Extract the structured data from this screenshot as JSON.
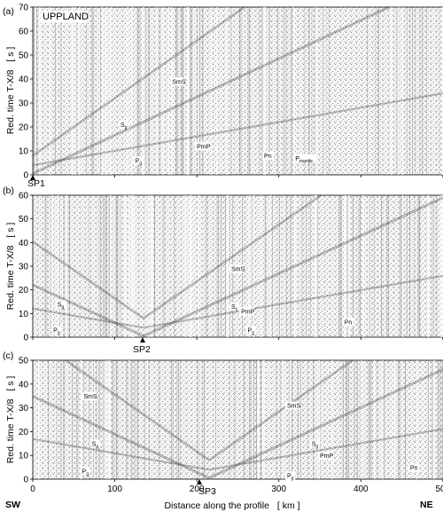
{
  "title": "UPPLAND",
  "directions": {
    "left": "SW",
    "right": "NE"
  },
  "x_axis": {
    "label": "Distance along the profile",
    "unit": "[ km ]",
    "min": 0,
    "max": 525,
    "ticks": [
      0,
      100,
      200,
      300,
      400,
      500
    ]
  },
  "y_axis_label": {
    "text": "Red. time  T-X/8",
    "unit": "[ s ]"
  },
  "panels": [
    {
      "id": "a",
      "letter": "(a)",
      "ylim": [
        0,
        70
      ],
      "yticks": [
        0,
        10,
        20,
        30,
        40,
        50,
        60,
        70
      ],
      "shotpoint": {
        "name": "SP1",
        "km": 0
      },
      "phases": [
        {
          "main": "SmS",
          "sub": "",
          "km": 170,
          "t": 38
        },
        {
          "main": "S",
          "sub": "g",
          "km": 107,
          "t": 20
        },
        {
          "main": "PmP",
          "sub": "",
          "km": 200,
          "t": 11
        },
        {
          "main": "P",
          "sub": "g",
          "km": 125,
          "t": 5
        },
        {
          "main": "Pn",
          "sub": "",
          "km": 282,
          "t": 7
        },
        {
          "main": "P",
          "sub": "mantle",
          "km": 320,
          "t": 6
        }
      ]
    },
    {
      "id": "b",
      "letter": "(b)",
      "ylim": [
        0,
        60
      ],
      "yticks": [
        0,
        10,
        20,
        30,
        40,
        50,
        60
      ],
      "shotpoint": {
        "name": "SP2",
        "km": 135
      },
      "phases": [
        {
          "main": "SmS",
          "sub": "",
          "km": 242,
          "t": 28
        },
        {
          "main": "S",
          "sub": "g",
          "km": 30,
          "t": 13
        },
        {
          "main": "S",
          "sub": "c",
          "km": 242,
          "t": 12
        },
        {
          "main": "PmP",
          "sub": "",
          "km": 254,
          "t": 10
        },
        {
          "main": "P",
          "sub": "g",
          "km": 25,
          "t": 2
        },
        {
          "main": "P",
          "sub": "g",
          "km": 262,
          "t": 2
        },
        {
          "main": "Pn",
          "sub": "",
          "km": 380,
          "t": 5.5
        }
      ]
    },
    {
      "id": "c",
      "letter": "(c)",
      "ylim": [
        0,
        50
      ],
      "yticks": [
        0,
        10,
        20,
        30,
        40,
        50
      ],
      "shotpoint": {
        "name": "SP3",
        "km": 215
      },
      "phases": [
        {
          "main": "SmS",
          "sub": "",
          "km": 62,
          "t": 34
        },
        {
          "main": "S",
          "sub": "g",
          "km": 72,
          "t": 14
        },
        {
          "main": "P",
          "sub": "g",
          "km": 60,
          "t": 2.5
        },
        {
          "main": "SmS",
          "sub": "",
          "km": 310,
          "t": 30
        },
        {
          "main": "S",
          "sub": "g",
          "km": 340,
          "t": 14
        },
        {
          "main": "PmP",
          "sub": "",
          "km": 350,
          "t": 9
        },
        {
          "main": "P",
          "sub": "g",
          "km": 310,
          "t": 0.5
        },
        {
          "main": "Pn",
          "sub": "",
          "km": 460,
          "t": 4
        }
      ]
    }
  ]
}
